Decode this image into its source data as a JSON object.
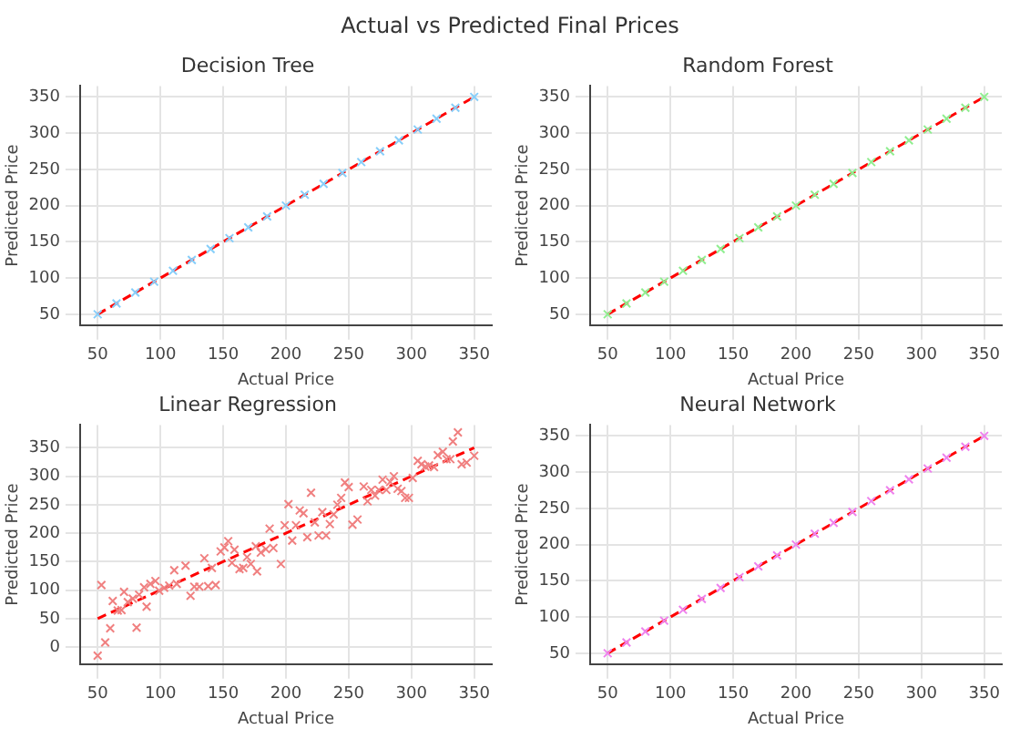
{
  "chart_data": [
    {
      "type": "scatter",
      "title": "Decision Tree",
      "xlabel": "Actual Price",
      "ylabel": "Predicted Price",
      "annotations": [
        "Actual vs Predicted Final Prices"
      ],
      "grid": true,
      "xlim": [
        36,
        364
      ],
      "ylim": [
        35,
        365
      ],
      "xticks": [
        50,
        100,
        150,
        200,
        250,
        300,
        350
      ],
      "yticks": [
        50,
        100,
        150,
        200,
        250,
        300,
        350
      ],
      "series": [
        {
          "type": "scatter",
          "marker": "cross",
          "color": "#87cefa",
          "x": [
            50,
            65,
            80,
            95,
            110,
            125,
            140,
            155,
            170,
            185,
            200,
            215,
            230,
            245,
            260,
            275,
            290,
            305,
            320,
            335,
            350
          ],
          "values": [
            50,
            65,
            80,
            95,
            110,
            125,
            140,
            155,
            170,
            185,
            200,
            215,
            230,
            245,
            260,
            275,
            290,
            305,
            320,
            335,
            350
          ]
        },
        {
          "type": "line",
          "marker": "none",
          "line_style": "dashed",
          "color": "#ff0000",
          "x": [
            50,
            350
          ],
          "values": [
            50,
            350
          ]
        }
      ]
    },
    {
      "type": "scatter",
      "title": "Random Forest",
      "xlabel": "Actual Price",
      "ylabel": "Predicted Price",
      "grid": true,
      "xlim": [
        36,
        364
      ],
      "ylim": [
        35,
        365
      ],
      "xticks": [
        50,
        100,
        150,
        200,
        250,
        300,
        350
      ],
      "yticks": [
        50,
        100,
        150,
        200,
        250,
        300,
        350
      ],
      "series": [
        {
          "type": "scatter",
          "marker": "cross",
          "color": "#90ee90",
          "x": [
            50,
            65,
            80,
            95,
            110,
            125,
            140,
            155,
            170,
            185,
            200,
            215,
            230,
            245,
            260,
            275,
            290,
            305,
            320,
            335,
            350
          ],
          "values": [
            50,
            65,
            80,
            95,
            110,
            125,
            140,
            155,
            170,
            185,
            200,
            215,
            230,
            245,
            260,
            275,
            290,
            305,
            320,
            335,
            350
          ]
        },
        {
          "type": "line",
          "marker": "none",
          "line_style": "dashed",
          "color": "#ff0000",
          "x": [
            50,
            350
          ],
          "values": [
            50,
            350
          ]
        }
      ]
    },
    {
      "type": "scatter",
      "title": "Linear Regression",
      "xlabel": "Actual Price",
      "ylabel": "Predicted Price",
      "grid": true,
      "xlim": [
        36,
        364
      ],
      "ylim": [
        -30,
        390
      ],
      "xticks": [
        50,
        100,
        150,
        200,
        250,
        300,
        350
      ],
      "yticks": [
        0,
        50,
        100,
        150,
        200,
        250,
        300,
        350
      ],
      "series": [
        {
          "type": "scatter",
          "marker": "cross",
          "color": "#f08080",
          "x": [
            50,
            53,
            56,
            60,
            62,
            66,
            69,
            71,
            74,
            78,
            81,
            83,
            87,
            89,
            92,
            96,
            99,
            103,
            107,
            111,
            113,
            120,
            124,
            127,
            131,
            135,
            138,
            141,
            144,
            148,
            151,
            154,
            157,
            159,
            163,
            166,
            169,
            172,
            176,
            177,
            180,
            184,
            187,
            190,
            196,
            199,
            202,
            205,
            208,
            211,
            214,
            217,
            220,
            223,
            226,
            229,
            232,
            235,
            238,
            241,
            244,
            247,
            250,
            253,
            257,
            262,
            265,
            268,
            271,
            274,
            277,
            280,
            283,
            286,
            289,
            292,
            295,
            298,
            301,
            305,
            308,
            311,
            314,
            318,
            321,
            325,
            328,
            331,
            333,
            337,
            340,
            344,
            350
          ],
          "values": [
            -15,
            109,
            8,
            33,
            81,
            64,
            65,
            97,
            79,
            85,
            34,
            92,
            105,
            71,
            111,
            116,
            99,
            104,
            108,
            135,
            111,
            143,
            90,
            106,
            106,
            156,
            107,
            139,
            109,
            168,
            175,
            186,
            148,
            171,
            137,
            139,
            158,
            146,
            177,
            133,
            166,
            172,
            208,
            174,
            146,
            214,
            251,
            187,
            214,
            240,
            235,
            193,
            271,
            219,
            196,
            237,
            196,
            216,
            233,
            250,
            262,
            289,
            281,
            215,
            224,
            282,
            256,
            276,
            266,
            276,
            294,
            276,
            290,
            300,
            278,
            274,
            262,
            262,
            297,
            327,
            321,
            317,
            319,
            316,
            337,
            343,
            330,
            330,
            361,
            377,
            321,
            324,
            336
          ]
        },
        {
          "type": "line",
          "marker": "none",
          "line_style": "dashed",
          "color": "#ff0000",
          "x": [
            50,
            350
          ],
          "values": [
            50,
            350
          ]
        }
      ]
    },
    {
      "type": "scatter",
      "title": "Neural Network",
      "xlabel": "Actual Price",
      "ylabel": "Predicted Price",
      "grid": true,
      "xlim": [
        36,
        364
      ],
      "ylim": [
        35,
        365
      ],
      "xticks": [
        50,
        100,
        150,
        200,
        250,
        300,
        350
      ],
      "yticks": [
        50,
        100,
        150,
        200,
        250,
        300,
        350
      ],
      "series": [
        {
          "type": "scatter",
          "marker": "cross",
          "color": "#ee82ee",
          "x": [
            50,
            65,
            80,
            95,
            110,
            125,
            140,
            155,
            170,
            185,
            200,
            215,
            230,
            245,
            260,
            275,
            290,
            305,
            320,
            335,
            350
          ],
          "values": [
            50,
            65,
            80,
            95,
            110,
            125,
            140,
            155,
            170,
            185,
            200,
            215,
            230,
            245,
            260,
            275,
            290,
            305,
            320,
            335,
            350
          ]
        },
        {
          "type": "line",
          "marker": "none",
          "line_style": "dashed",
          "color": "#ff0000",
          "x": [
            50,
            350
          ],
          "values": [
            50,
            350
          ]
        }
      ]
    }
  ]
}
